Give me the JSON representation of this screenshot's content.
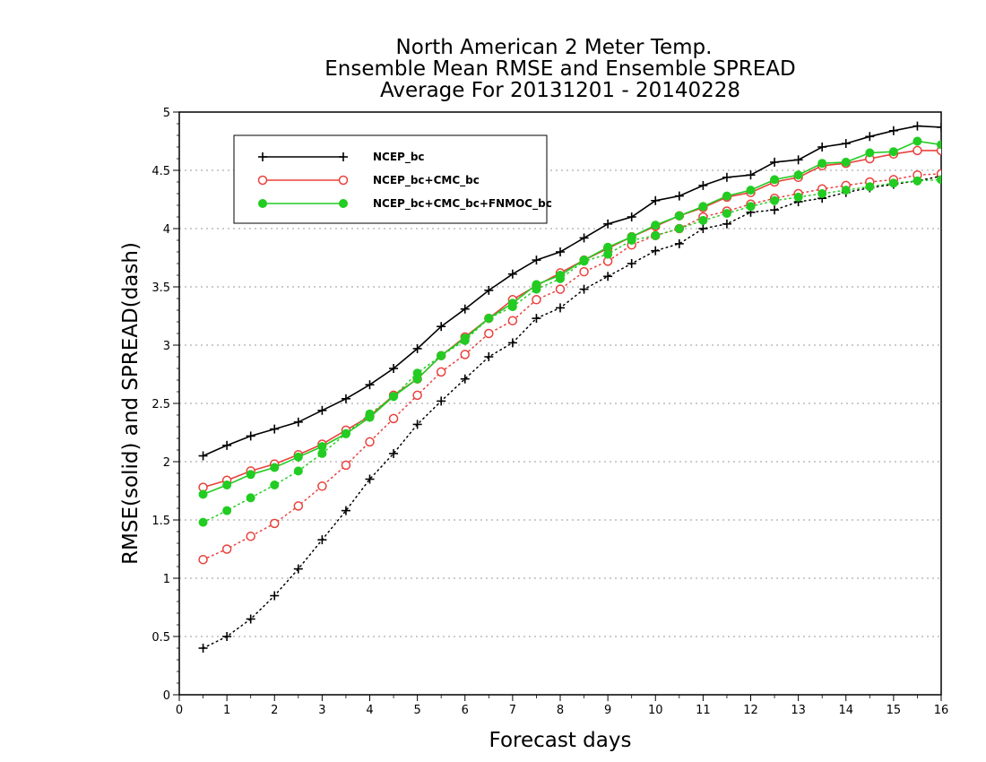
{
  "chart_data": {
    "type": "line",
    "title_lines": [
      "North American 2 Meter Temp.",
      "Ensemble Mean RMSE and Ensemble SPREAD",
      "Average For 20131201 - 20140228"
    ],
    "xlabel": "Forecast days",
    "ylabel": "RMSE(solid) and SPREAD(dash)",
    "xlim": [
      0,
      16
    ],
    "ylim": [
      0,
      5
    ],
    "x_ticks": [
      "0",
      "1",
      "2",
      "3",
      "4",
      "5",
      "6",
      "7",
      "8",
      "9",
      "10",
      "11",
      "12",
      "13",
      "14",
      "15",
      "16"
    ],
    "y_ticks": [
      "0",
      "0.5",
      "1",
      "1.5",
      "2",
      "2.5",
      "3",
      "3.5",
      "4",
      "4.5",
      "5"
    ],
    "grid": "horizontal dotted",
    "legend_position": "top-left",
    "x": [
      0.5,
      1,
      1.5,
      2,
      2.5,
      3,
      3.5,
      4,
      4.5,
      5,
      5.5,
      6,
      6.5,
      7,
      7.5,
      8,
      8.5,
      9,
      9.5,
      10,
      10.5,
      11,
      11.5,
      12,
      12.5,
      13,
      13.5,
      14,
      14.5,
      15,
      15.5,
      16
    ],
    "series": [
      {
        "name": "NCEP_bc",
        "color": "#000000",
        "marker": "plus",
        "rmse": [
          2.05,
          2.14,
          2.22,
          2.28,
          2.34,
          2.44,
          2.54,
          2.66,
          2.8,
          2.97,
          3.16,
          3.31,
          3.47,
          3.61,
          3.73,
          3.8,
          3.92,
          4.04,
          4.1,
          4.24,
          4.28,
          4.37,
          4.44,
          4.46,
          4.57,
          4.59,
          4.7,
          4.73,
          4.79,
          4.84,
          4.88,
          4.87
        ],
        "spread": [
          0.4,
          0.5,
          0.65,
          0.85,
          1.08,
          1.33,
          1.58,
          1.85,
          2.07,
          2.32,
          2.52,
          2.71,
          2.9,
          3.02,
          3.23,
          3.32,
          3.48,
          3.59,
          3.7,
          3.81,
          3.87,
          4.0,
          4.04,
          4.14,
          4.16,
          4.23,
          4.26,
          4.31,
          4.35,
          4.38,
          4.41,
          4.45
        ]
      },
      {
        "name": "NCEP_bc+CMC_bc",
        "color": "#e8413c",
        "marker": "open-circle",
        "rmse": [
          1.78,
          1.84,
          1.92,
          1.98,
          2.06,
          2.15,
          2.27,
          2.39,
          2.57,
          2.71,
          2.91,
          3.07,
          3.23,
          3.39,
          3.51,
          3.62,
          3.73,
          3.83,
          3.93,
          4.02,
          4.11,
          4.18,
          4.27,
          4.31,
          4.4,
          4.44,
          4.54,
          4.56,
          4.6,
          4.64,
          4.67,
          4.67
        ],
        "spread": [
          1.16,
          1.25,
          1.36,
          1.47,
          1.62,
          1.79,
          1.97,
          2.17,
          2.37,
          2.57,
          2.77,
          2.92,
          3.1,
          3.21,
          3.39,
          3.48,
          3.63,
          3.72,
          3.86,
          3.94,
          4.0,
          4.1,
          4.15,
          4.21,
          4.26,
          4.3,
          4.34,
          4.37,
          4.4,
          4.42,
          4.46,
          4.47
        ]
      },
      {
        "name": "NCEP_bc+CMC_bc+FNMOC_bc",
        "color": "#22cc22",
        "marker": "filled-circle",
        "rmse": [
          1.72,
          1.8,
          1.89,
          1.95,
          2.04,
          2.13,
          2.24,
          2.38,
          2.56,
          2.71,
          2.91,
          3.06,
          3.23,
          3.36,
          3.52,
          3.6,
          3.73,
          3.84,
          3.93,
          4.03,
          4.11,
          4.19,
          4.28,
          4.33,
          4.42,
          4.46,
          4.56,
          4.57,
          4.65,
          4.66,
          4.75,
          4.72
        ],
        "spread": [
          1.48,
          1.58,
          1.69,
          1.8,
          1.92,
          2.07,
          2.24,
          2.41,
          2.56,
          2.76,
          2.91,
          3.04,
          3.23,
          3.33,
          3.48,
          3.57,
          3.72,
          3.78,
          3.9,
          3.94,
          4.0,
          4.07,
          4.13,
          4.19,
          4.24,
          4.27,
          4.3,
          4.33,
          4.36,
          4.39,
          4.41,
          4.42
        ]
      }
    ]
  }
}
